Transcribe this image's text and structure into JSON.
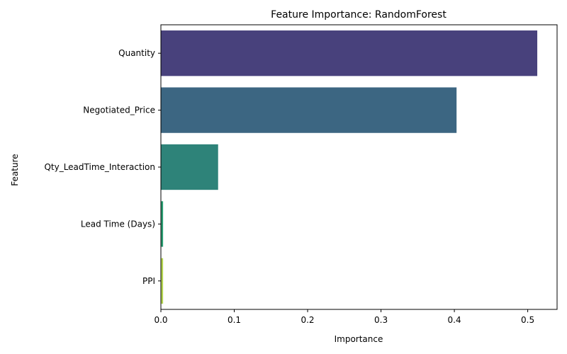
{
  "chart_data": {
    "type": "bar",
    "orientation": "horizontal",
    "title": "Feature Importance: RandomForest",
    "xlabel": "Importance",
    "ylabel": "Feature",
    "categories": [
      "Quantity",
      "Negotiated_Price",
      "Qty_LeadTime_Interaction",
      "Lead Time (Days)",
      "PPI"
    ],
    "values": [
      0.513,
      0.403,
      0.078,
      0.003,
      0.003
    ],
    "colors": [
      "#48417c",
      "#3c6682",
      "#2e8379",
      "#2a9d72",
      "#b3d34f"
    ],
    "xlim": [
      0,
      0.54
    ],
    "xticks": [
      0.0,
      0.1,
      0.2,
      0.3,
      0.4,
      0.5
    ],
    "xtick_labels": [
      "0.0",
      "0.1",
      "0.2",
      "0.3",
      "0.4",
      "0.5"
    ],
    "grid": false,
    "legend": "none"
  }
}
